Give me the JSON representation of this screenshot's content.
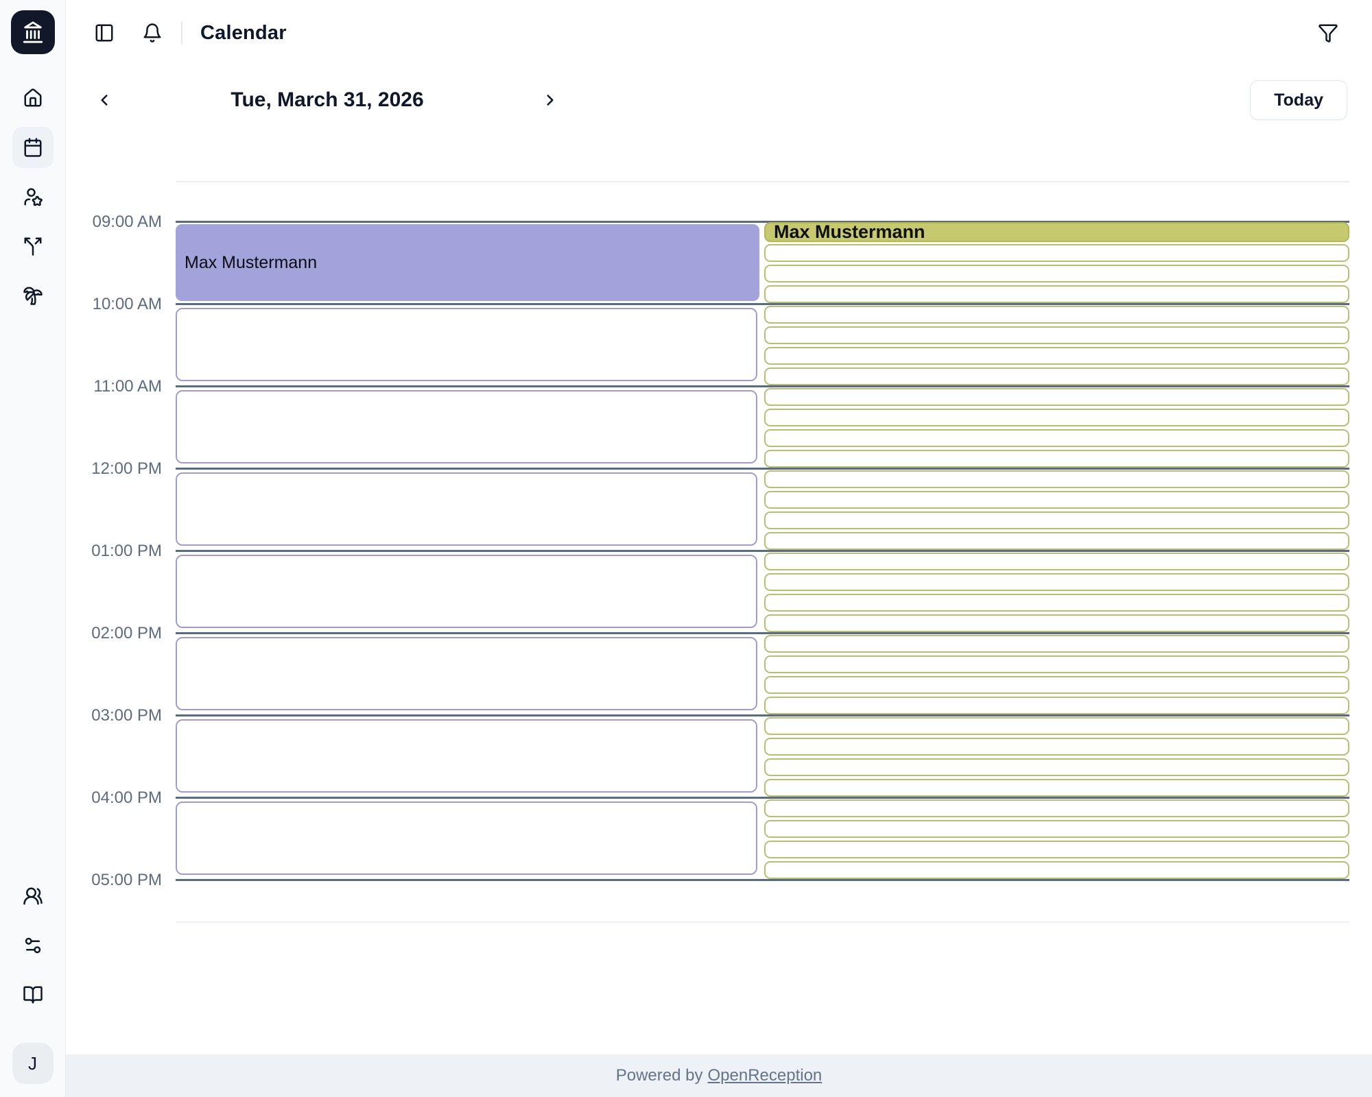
{
  "header": {
    "title": "Calendar",
    "icons": [
      "panel-left-icon",
      "bell-icon",
      "funnel-icon"
    ]
  },
  "sidebar": {
    "logo_icon": "landmark-icon",
    "nav_icons": [
      "home-icon",
      "calendar-icon",
      "user-star-icon",
      "split-icon",
      "palm-tree-icon"
    ],
    "active_item": "calendar",
    "bottom_icons": [
      "users-icon",
      "sliders-icon",
      "book-open-icon"
    ],
    "avatar_initial": "J"
  },
  "date_nav": {
    "date_label": "Tue, March 31, 2026",
    "today_label": "Today"
  },
  "calendar": {
    "time_labels": [
      "09:00 AM",
      "10:00 AM",
      "11:00 AM",
      "12:00 PM",
      "01:00 PM",
      "02:00 PM",
      "03:00 PM",
      "04:00 PM",
      "05:00 PM"
    ],
    "appointment_column": {
      "event": {
        "title": "Max Mustermann",
        "start": "09:00 AM",
        "end": "10:00 AM"
      },
      "empty_hour_slots": 7
    },
    "availability_column": {
      "provider_label": "Max Mustermann",
      "slots_per_hour": 4,
      "total_slots": 32,
      "filled_slot_index": 0
    }
  },
  "footer": {
    "text": "Powered by",
    "link_label": "OpenReception"
  },
  "colors": {
    "event_purple": "#a3a3dc",
    "purple_slot_border": "#9d9dd4",
    "availability_olive": "#c6c96e",
    "olive_slot_border": "#b9bf72",
    "olive_filled_border": "#b2b65c",
    "hour_line": "#5b6b7d",
    "time_label": "#5b6b80",
    "logo_bg": "#101829",
    "footer_bg": "#eef1f5"
  }
}
